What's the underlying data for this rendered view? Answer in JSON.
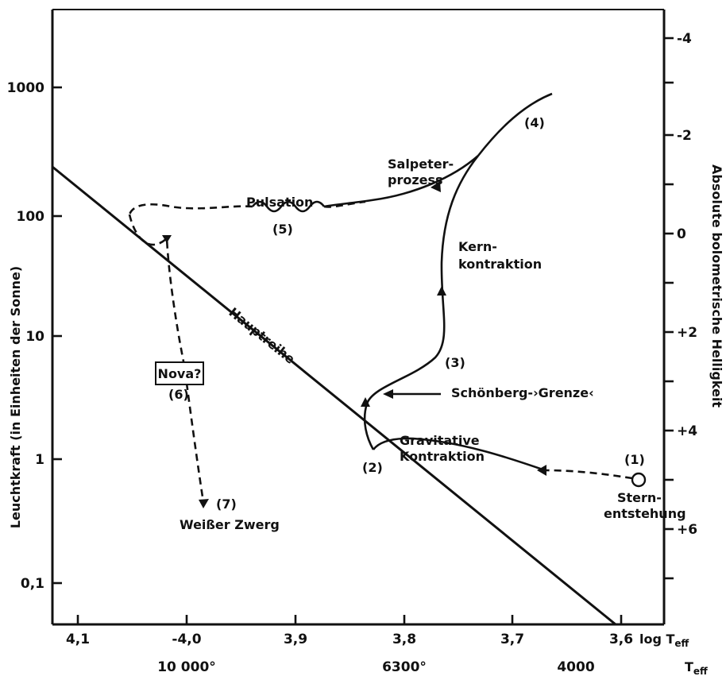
{
  "axes": {
    "left_label": "Leuchtkraft (in Einheiten der Sonne)",
    "right_label": "Absolute bolometrische Helligkeit",
    "bottom_label": "log T",
    "bottom_label_sub": "eff",
    "bottom2_label": "T",
    "bottom2_label_sub": "eff",
    "left_ticks": [
      "1000",
      "100",
      "10",
      "1",
      "0,1"
    ],
    "right_ticks": [
      "-4",
      "-2",
      "0",
      "+2",
      "+4",
      "+6"
    ],
    "bottom_ticks": [
      "4,1",
      "-4,0",
      "3,9",
      "3,8",
      "3,7",
      "3,6"
    ],
    "temp_ticks": [
      "10 000°",
      "6300°",
      "4000"
    ]
  },
  "labels": {
    "hauptreihe": "Hauptreihe",
    "pulsation": "Pulsation",
    "p5": "(5)",
    "salpeter1": "Salpeter-",
    "salpeter2": "prozess",
    "p4": "(4)",
    "kern1": "Kern-",
    "kern2": "kontraktion",
    "p3": "(3)",
    "schoenberg": "Schönberg-›Grenze‹",
    "p2": "(2)",
    "grav1": "Gravitative",
    "grav2": "Kontraktion",
    "p1": "(1)",
    "stern1": "Stern-",
    "stern2": "entstehung",
    "nova": "Nova?",
    "p6": "(6)",
    "p7": "(7)",
    "weisser": "Weißer Zwerg"
  }
}
